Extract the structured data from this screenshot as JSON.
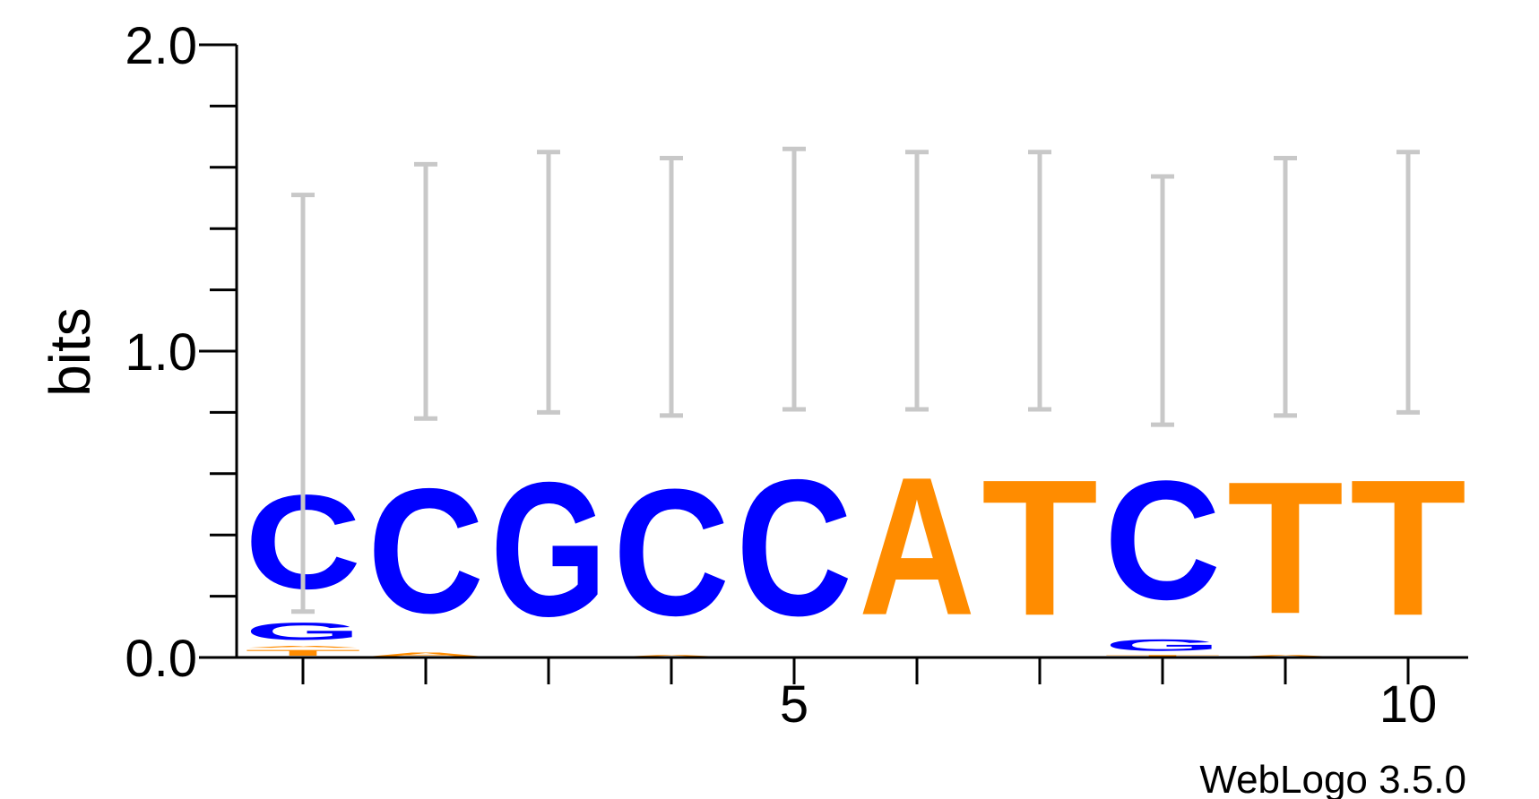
{
  "chart_data": {
    "type": "sequence-logo",
    "ylabel": "bits",
    "ylim": [
      0,
      2
    ],
    "y_ticks": [
      {
        "value": 0,
        "label": "0.0"
      },
      {
        "value": 1,
        "label": "1.0"
      },
      {
        "value": 2,
        "label": "2.0"
      }
    ],
    "y_minor_tick_step": 0.2,
    "x_ticks": [
      {
        "value": 5,
        "label": "5"
      },
      {
        "value": 10,
        "label": "10"
      }
    ],
    "positions": [
      1,
      2,
      3,
      4,
      5,
      6,
      7,
      8,
      9,
      10
    ],
    "colors": {
      "C": "#0000ff",
      "G": "#0000ff",
      "A": "#ff8c00",
      "T": "#ff8c00",
      "error_bar": "#c8c8c8",
      "axis": "#000000"
    },
    "stacks": [
      {
        "position": 1,
        "letters": [
          {
            "base": "T",
            "height": 0.03
          },
          {
            "base": "A",
            "height": 0.01
          },
          {
            "base": "G",
            "height": 0.09
          },
          {
            "base": "C",
            "height": 0.49
          }
        ],
        "error": [
          0.15,
          1.51
        ]
      },
      {
        "position": 2,
        "letters": [
          {
            "base": "A",
            "height": 0.02
          },
          {
            "base": "C",
            "height": 0.65
          }
        ],
        "error": [
          0.78,
          1.61
        ]
      },
      {
        "position": 3,
        "letters": [
          {
            "base": "G",
            "height": 0.7
          }
        ],
        "error": [
          0.8,
          1.65
        ]
      },
      {
        "position": 4,
        "letters": [
          {
            "base": "A",
            "height": 0.01
          },
          {
            "base": "C",
            "height": 0.66
          }
        ],
        "error": [
          0.79,
          1.63
        ]
      },
      {
        "position": 5,
        "letters": [
          {
            "base": "C",
            "height": 0.71
          }
        ],
        "error": [
          0.81,
          1.66
        ]
      },
      {
        "position": 6,
        "letters": [
          {
            "base": "A",
            "height": 0.72
          }
        ],
        "error": [
          0.81,
          1.65
        ]
      },
      {
        "position": 7,
        "letters": [
          {
            "base": "T",
            "height": 0.71
          }
        ],
        "error": [
          0.81,
          1.65
        ]
      },
      {
        "position": 8,
        "letters": [
          {
            "base": "T",
            "height": 0.01
          },
          {
            "base": "G",
            "height": 0.06
          },
          {
            "base": "C",
            "height": 0.62
          }
        ],
        "error": [
          0.76,
          1.57
        ]
      },
      {
        "position": 9,
        "letters": [
          {
            "base": "A",
            "height": 0.01
          },
          {
            "base": "T",
            "height": 0.69
          }
        ],
        "error": [
          0.79,
          1.63
        ]
      },
      {
        "position": 10,
        "letters": [
          {
            "base": "T",
            "height": 0.71
          }
        ],
        "error": [
          0.8,
          1.65
        ]
      }
    ]
  },
  "credit": "WebLogo 3.5.0"
}
